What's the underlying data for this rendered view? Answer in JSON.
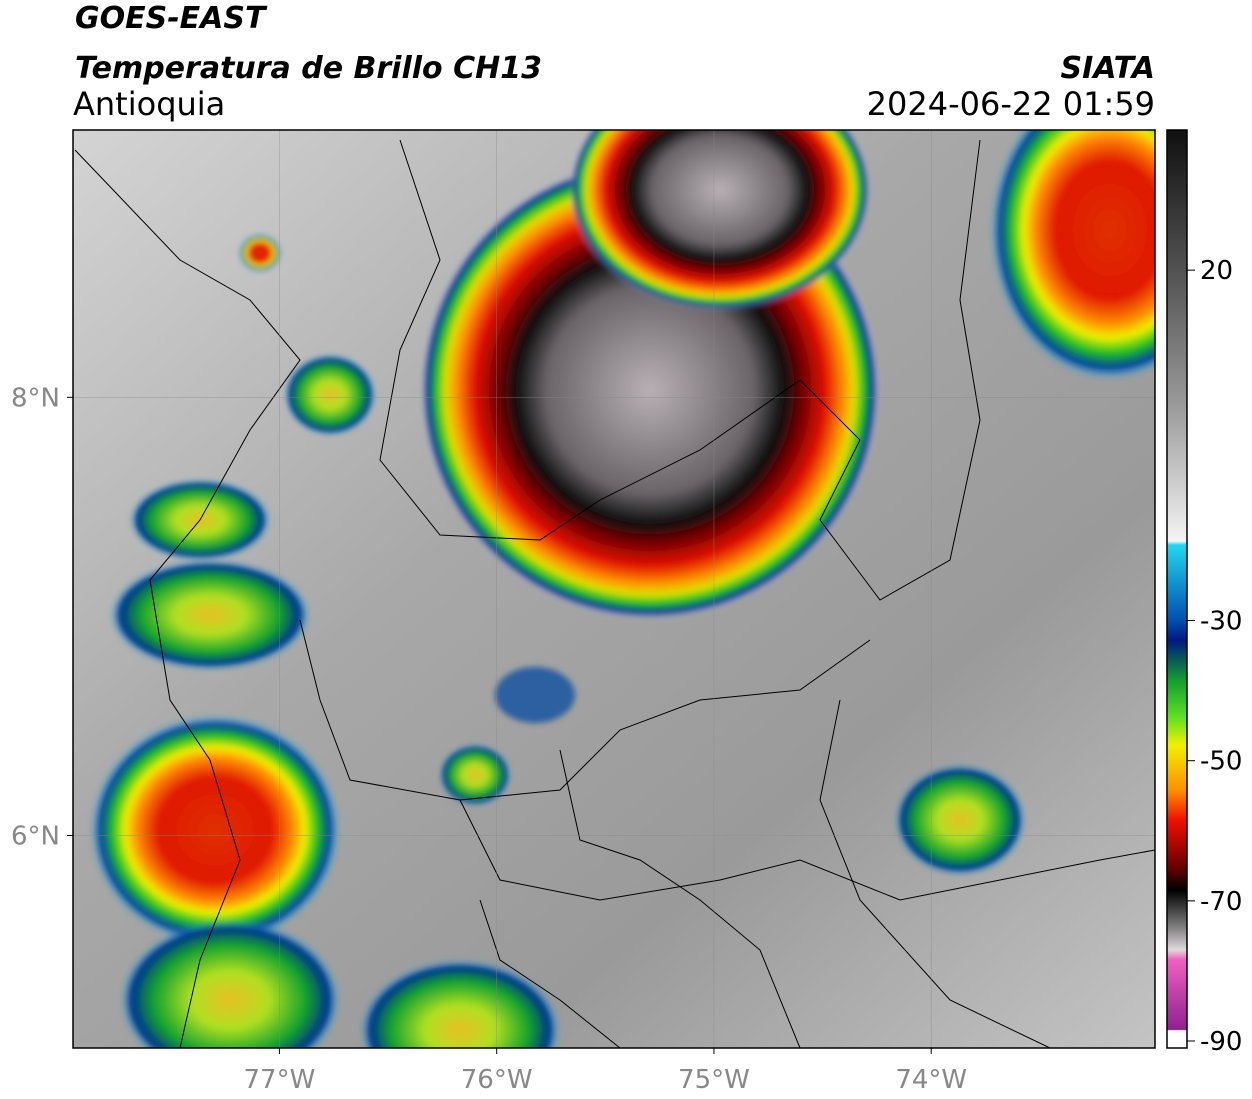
{
  "header": {
    "title": "GOES-EAST",
    "subtitle": "Temperatura de Brillo CH13",
    "region": "Antioquia",
    "source": "SIATA",
    "timestamp": "2024-06-22 01:59"
  },
  "map": {
    "xlim": [
      -77.95,
      -72.97
    ],
    "ylim": [
      5.03,
      9.22
    ],
    "xticks": [
      {
        "value": -77,
        "label": "77°W"
      },
      {
        "value": -76,
        "label": "76°W"
      },
      {
        "value": -75,
        "label": "75°W"
      },
      {
        "value": -74,
        "label": "74°W"
      }
    ],
    "yticks": [
      {
        "value": 8,
        "label": "8°N"
      },
      {
        "value": 6,
        "label": "6°N"
      }
    ]
  },
  "colorbar": {
    "range": [
      -91,
      40
    ],
    "ticks": [
      20,
      -30,
      -50,
      -70,
      -90
    ]
  }
}
